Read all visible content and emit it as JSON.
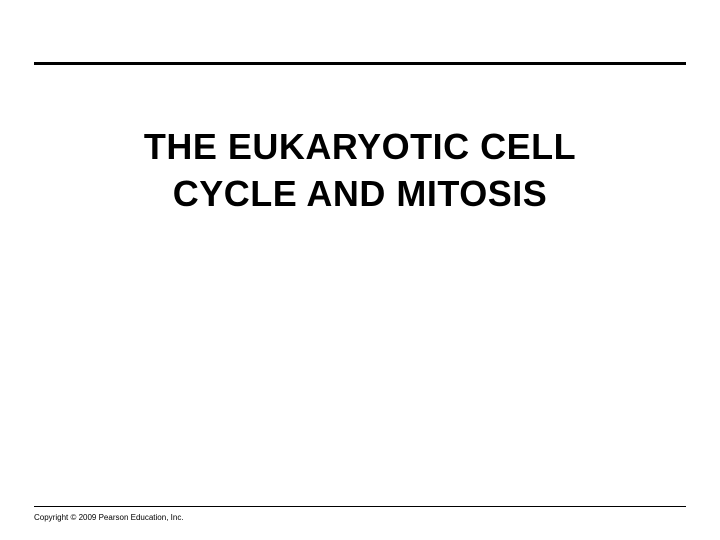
{
  "slide": {
    "title_line1": "THE EUKARYOTIC CELL",
    "title_line2": "CYCLE AND MITOSIS",
    "copyright": "Copyright © 2009 Pearson Education, Inc."
  },
  "style": {
    "background_color": "#ffffff",
    "rule_color": "#000000",
    "title_color": "#000000",
    "title_fontsize": 36,
    "title_fontweight": "bold",
    "copyright_fontsize": 8,
    "top_rule_thickness": 3,
    "bottom_rule_thickness": 1
  }
}
